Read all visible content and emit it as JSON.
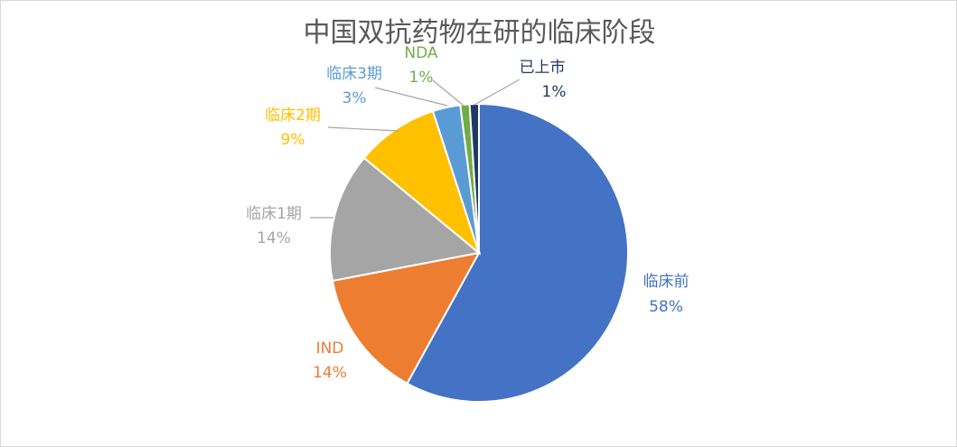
{
  "chart_data": {
    "type": "pie",
    "title": "中国双抗药物在研的临床阶段",
    "slices": [
      {
        "label": "临床前",
        "value": 58,
        "value_label": "58%",
        "color": "#4472c4"
      },
      {
        "label": "IND",
        "value": 14,
        "value_label": "14%",
        "color": "#ed7d31"
      },
      {
        "label": "临床1期",
        "value": 14,
        "value_label": "14%",
        "color": "#a5a5a5"
      },
      {
        "label": "临床2期",
        "value": 9,
        "value_label": "9%",
        "color": "#ffc000"
      },
      {
        "label": "临床3期",
        "value": 3,
        "value_label": "3%",
        "color": "#5b9bd5"
      },
      {
        "label": "NDA",
        "value": 1,
        "value_label": "1%",
        "color": "#70ad47"
      },
      {
        "label": "已上市",
        "value": 1,
        "value_label": "1%",
        "color": "#203864"
      }
    ],
    "legend": "none",
    "data_labels": "outside-with-leader-lines"
  }
}
